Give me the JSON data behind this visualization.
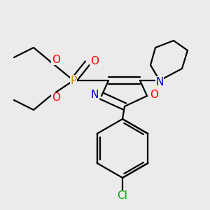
{
  "bg_color": "#ebebeb",
  "bond_color": "#000000",
  "bond_width": 1.6,
  "atom_colors": {
    "O": "#ff0000",
    "N": "#0000cc",
    "P": "#cc8800",
    "Cl": "#00aa00"
  },
  "figsize": [
    3.0,
    3.0
  ],
  "dpi": 100
}
